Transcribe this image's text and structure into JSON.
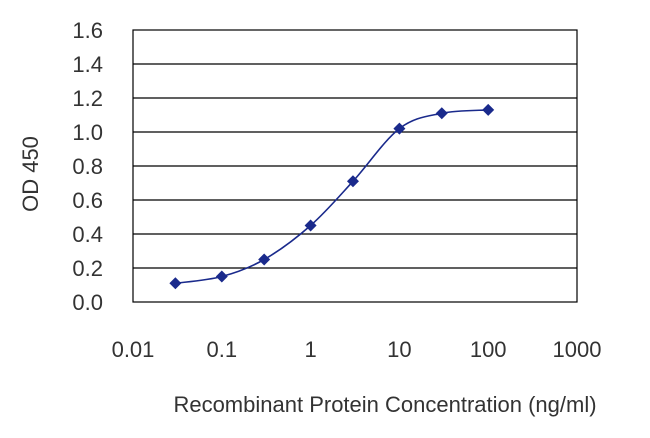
{
  "chart_data": {
    "type": "line",
    "title": "",
    "xlabel": "Recombinant Protein Concentration (ng/ml)",
    "ylabel": "OD 450",
    "x_scale": "log",
    "xlim": [
      0.01,
      1000
    ],
    "ylim": [
      0.0,
      1.6
    ],
    "x_ticks": [
      "0.01",
      "0.1",
      "1",
      "10",
      "100",
      "1000"
    ],
    "y_ticks": [
      "0.0",
      "0.2",
      "0.4",
      "0.6",
      "0.8",
      "1.0",
      "1.2",
      "1.4",
      "1.6"
    ],
    "grid": "horizontal",
    "series": [
      {
        "color": "#1a2a8c",
        "marker": "diamond",
        "points": [
          {
            "x": 0.03,
            "y": 0.11
          },
          {
            "x": 0.1,
            "y": 0.15
          },
          {
            "x": 0.3,
            "y": 0.25
          },
          {
            "x": 1,
            "y": 0.45
          },
          {
            "x": 3,
            "y": 0.71
          },
          {
            "x": 10,
            "y": 1.02
          },
          {
            "x": 30,
            "y": 1.11
          },
          {
            "x": 100,
            "y": 1.13
          }
        ]
      }
    ]
  }
}
